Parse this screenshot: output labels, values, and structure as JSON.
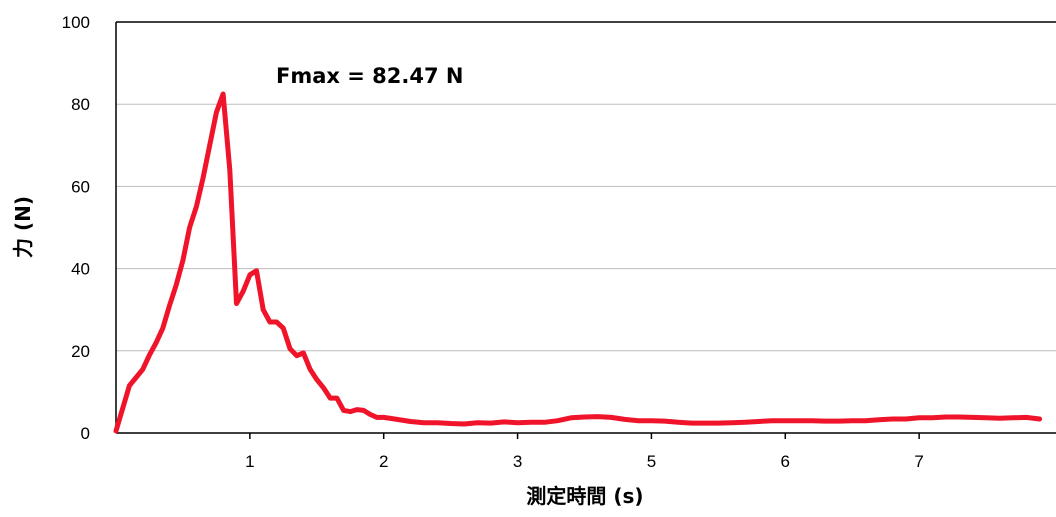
{
  "chart_data": {
    "type": "line",
    "xlabel": "測定時間 (s)",
    "ylabel": "力 (N)",
    "ylim": [
      0,
      100
    ],
    "y_ticks": [
      "0",
      "20",
      "40",
      "60",
      "80",
      "100"
    ],
    "x_ticks": [
      "1",
      "2",
      "3",
      "5",
      "6",
      "7"
    ],
    "grid": "horizontal",
    "annotation": "Fmax =  82.47 N",
    "line_color": "#f0142a",
    "series": [
      {
        "x": [
          0.0,
          0.05,
          0.1,
          0.15,
          0.2,
          0.25,
          0.3,
          0.35,
          0.4,
          0.45,
          0.5,
          0.55,
          0.6,
          0.65,
          0.7,
          0.75,
          0.8,
          0.85,
          0.9,
          0.95,
          1.0,
          1.05,
          1.1,
          1.15,
          1.2,
          1.25,
          1.3,
          1.35,
          1.4,
          1.45,
          1.5,
          1.55,
          1.6,
          1.65,
          1.7,
          1.75,
          1.8,
          1.85,
          1.9,
          1.95,
          2.0,
          2.1,
          2.2,
          2.3,
          2.4,
          2.5,
          2.6,
          2.7,
          2.8,
          2.9,
          3.0,
          3.1,
          3.2,
          3.3,
          3.4,
          3.5,
          3.6,
          3.7,
          3.8,
          3.9,
          4.0,
          4.1,
          4.2,
          4.3,
          4.4,
          4.5,
          4.6,
          4.7,
          4.8,
          4.9,
          5.0,
          5.1,
          5.2,
          5.3,
          5.4,
          5.5,
          5.6,
          5.7,
          5.8,
          5.9,
          6.0,
          6.1,
          6.2,
          6.3,
          6.4,
          6.5,
          6.6,
          6.7,
          6.8,
          6.9
        ],
        "y": [
          0.5,
          6,
          11.5,
          13.5,
          15.5,
          19,
          22,
          25.5,
          31,
          36,
          42,
          50,
          55,
          62,
          70,
          78,
          82.47,
          64,
          31.5,
          34.5,
          38.5,
          39.5,
          30,
          27,
          27,
          25.5,
          20.5,
          18.8,
          19.5,
          15.5,
          13,
          11,
          8.5,
          8.5,
          5.5,
          5.2,
          5.7,
          5.5,
          4.5,
          3.8,
          3.8,
          3.3,
          2.8,
          2.5,
          2.5,
          2.3,
          2.2,
          2.5,
          2.4,
          2.7,
          2.5,
          2.6,
          2.6,
          3.0,
          3.7,
          3.9,
          4.0,
          3.8,
          3.3,
          3.0,
          3.0,
          2.9,
          2.6,
          2.4,
          2.4,
          2.4,
          2.5,
          2.6,
          2.8,
          3.0,
          3.0,
          3.0,
          3.0,
          2.9,
          2.9,
          3.0,
          3.0,
          3.2,
          3.4,
          3.4,
          3.7,
          3.7,
          3.9,
          3.9,
          3.8,
          3.7,
          3.6,
          3.7,
          3.8,
          3.4
        ]
      }
    ]
  }
}
